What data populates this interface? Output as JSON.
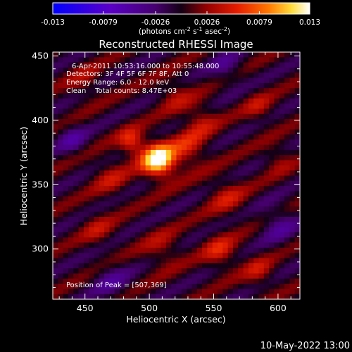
{
  "colorbar": {
    "tick_labels": [
      "-0.013",
      "-0.0079",
      "-0.0026",
      "0.0026",
      "0.0079",
      "0.013"
    ],
    "ticks": [
      -0.013,
      -0.0079,
      -0.0026,
      0.0026,
      0.0079,
      0.013
    ],
    "min": -0.013,
    "max": 0.013,
    "unit_prefix": "(photons cm",
    "unit_exp1": "-2",
    "unit_mid": " s",
    "unit_exp2": "-1",
    "unit_mid2": " asec",
    "unit_exp3": "-2",
    "unit_suffix": ")",
    "colors": [
      "#0000ff",
      "#6a00d0",
      "#2a0030",
      "#c00000",
      "#ff6000",
      "#ffff60",
      "#ffffff"
    ]
  },
  "chart_data": {
    "type": "heatmap",
    "title": "Reconstructed RHESSI Image",
    "xlabel": "Heliocentric X (arcsec)",
    "ylabel": "Heliocentric Y (arcsec)",
    "xlim": [
      425,
      617
    ],
    "ylim": [
      261,
      453
    ],
    "xticks": [
      450,
      500,
      550,
      600
    ],
    "yticks": [
      300,
      350,
      400,
      450
    ],
    "annotations": {
      "date_range": "6-Apr-2011 10:53:16.000 to 10:55:48.000",
      "detectors": "Detectors: 3F 4F 5F 6F 7F 8F, Att 0",
      "energy": "Energy Range: 6.0 - 12.0 keV",
      "clean": "Clean    Total counts: 8.47E+03",
      "peak": "Position of Peak = [507,369]"
    },
    "peak": {
      "x": 507,
      "y": 369,
      "value": 0.013
    },
    "sources": [
      {
        "x": 507,
        "y": 369,
        "sigma": 9,
        "amp": 0.0135
      },
      {
        "x": 486,
        "y": 383,
        "sigma": 7,
        "amp": 0.006
      },
      {
        "x": 530,
        "y": 378,
        "sigma": 10,
        "amp": 0.0045
      },
      {
        "x": 540,
        "y": 400,
        "sigma": 9,
        "amp": 0.0035
      },
      {
        "x": 520,
        "y": 420,
        "sigma": 9,
        "amp": 0.003
      },
      {
        "x": 470,
        "y": 355,
        "sigma": 10,
        "amp": 0.003
      },
      {
        "x": 560,
        "y": 340,
        "sigma": 10,
        "amp": 0.0035
      },
      {
        "x": 585,
        "y": 410,
        "sigma": 8,
        "amp": 0.003
      },
      {
        "x": 555,
        "y": 298,
        "sigma": 9,
        "amp": 0.0045
      },
      {
        "x": 585,
        "y": 282,
        "sigma": 8,
        "amp": 0.0035
      },
      {
        "x": 510,
        "y": 300,
        "sigma": 10,
        "amp": 0.003
      },
      {
        "x": 460,
        "y": 315,
        "sigma": 9,
        "amp": 0.0028
      },
      {
        "x": 450,
        "y": 430,
        "sigma": 9,
        "amp": 0.0025
      },
      {
        "x": 600,
        "y": 370,
        "sigma": 8,
        "amp": 0.0025
      },
      {
        "x": 440,
        "y": 385,
        "sigma": 8,
        "amp": -0.0035
      },
      {
        "x": 600,
        "y": 320,
        "sigma": 10,
        "amp": -0.0035
      },
      {
        "x": 470,
        "y": 275,
        "sigma": 10,
        "amp": -0.003
      },
      {
        "x": 560,
        "y": 440,
        "sigma": 9,
        "amp": -0.003
      }
    ],
    "stripe_amp": 0.0022,
    "stripe_wavelength": 28,
    "stripe_angle_deg": -28
  },
  "footer": {
    "timestamp": "10-May-2022 13:00"
  }
}
